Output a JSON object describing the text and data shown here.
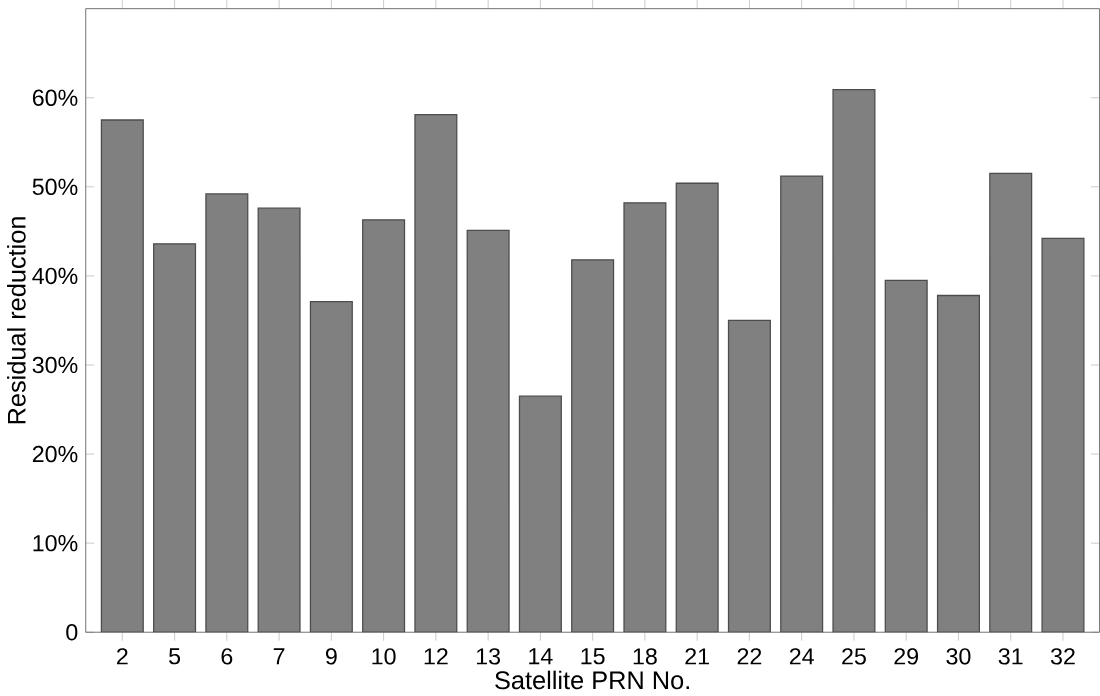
{
  "chart_data": {
    "type": "bar",
    "xlabel": "Satellite PRN No.",
    "ylabel": "Residual reduction",
    "categories": [
      "2",
      "5",
      "6",
      "7",
      "9",
      "10",
      "12",
      "13",
      "14",
      "15",
      "18",
      "21",
      "22",
      "24",
      "25",
      "29",
      "30",
      "31",
      "32"
    ],
    "values": [
      57.5,
      43.6,
      49.2,
      47.6,
      37.1,
      46.3,
      58.1,
      45.1,
      26.5,
      41.8,
      48.2,
      50.4,
      35.0,
      51.2,
      60.9,
      39.5,
      37.8,
      51.5,
      44.2
    ],
    "color": "#808080",
    "ylim": [
      0,
      70
    ],
    "yticks": [
      0,
      {
        "value": 10,
        "label": "10%"
      },
      {
        "value": 20,
        "label": "20%"
      },
      {
        "value": 30,
        "label": "30%"
      },
      {
        "value": 40,
        "label": "40%"
      },
      {
        "value": 50,
        "label": "50%"
      },
      {
        "value": 60,
        "label": "60%"
      }
    ],
    "grid": false
  }
}
